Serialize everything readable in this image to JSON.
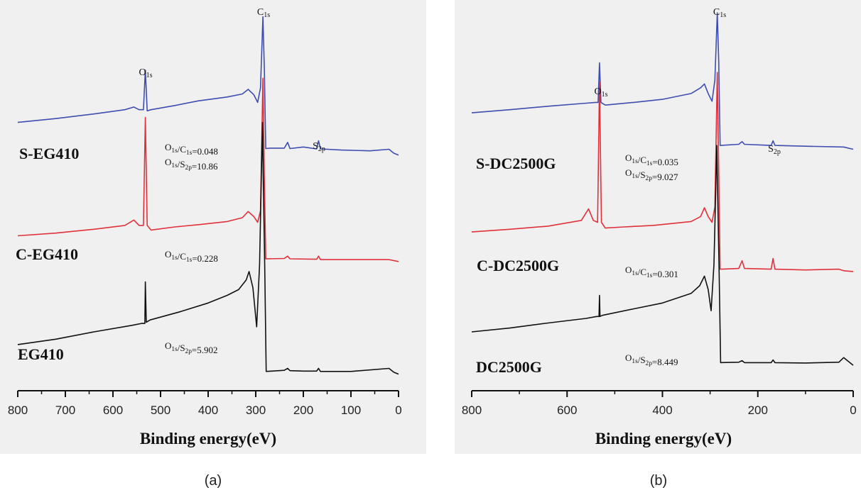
{
  "figure": {
    "panel_a_caption": "(a)",
    "panel_b_caption": "(b)"
  },
  "chart_data": [
    {
      "type": "line",
      "panel": "a",
      "xlabel": "Binding energy(eV)",
      "ylabel": "",
      "xlim": [
        800,
        0
      ],
      "x_reversed": true,
      "x_ticks": [
        800,
        700,
        600,
        500,
        400,
        300,
        200,
        100,
        0
      ],
      "y_ticks_shown": false,
      "grid": false,
      "peak_labels": [
        {
          "main": "O",
          "sub": "1s",
          "x": 532
        },
        {
          "main": "C",
          "sub": "1s",
          "x": 284
        },
        {
          "main": "S",
          "sub": "2p",
          "x": 168
        }
      ],
      "series": [
        {
          "name": "S-EG410",
          "color": "#3d4eb0",
          "x": [
            800,
            720,
            640,
            575,
            556,
            545,
            536,
            532,
            528,
            520,
            470,
            420,
            360,
            328,
            316,
            304,
            296,
            290,
            285,
            282,
            279,
            270,
            240,
            233,
            228,
            200,
            172,
            168,
            164,
            120,
            60,
            20,
            10,
            0
          ],
          "y": [
            0.7,
            0.71,
            0.722,
            0.733,
            0.74,
            0.733,
            0.733,
            0.836,
            0.73,
            0.733,
            0.744,
            0.756,
            0.766,
            0.774,
            0.786,
            0.772,
            0.752,
            0.79,
            0.975,
            0.84,
            0.632,
            0.633,
            0.633,
            0.648,
            0.632,
            0.636,
            0.631,
            0.652,
            0.631,
            0.628,
            0.626,
            0.63,
            0.62,
            0.615
          ],
          "annotations": [
            {
              "text_parts": [
                {
                  "t": "O",
                  "sub": "1s"
                },
                {
                  "t": "/C",
                  "sub": "1s"
                },
                {
                  "t": "=0.048"
                }
              ]
            },
            {
              "text_parts": [
                {
                  "t": "O",
                  "sub": "1s"
                },
                {
                  "t": "/S",
                  "sub": "2p"
                },
                {
                  "t": "=10.86"
                }
              ]
            }
          ]
        },
        {
          "name": "C-EG410",
          "color": "#e0313a",
          "x": [
            800,
            720,
            640,
            575,
            556,
            545,
            536,
            532,
            528,
            520,
            470,
            420,
            360,
            328,
            316,
            304,
            296,
            290,
            285,
            282,
            279,
            240,
            233,
            228,
            172,
            168,
            164,
            120,
            60,
            20,
            0
          ],
          "y": [
            0.405,
            0.412,
            0.422,
            0.432,
            0.446,
            0.432,
            0.432,
            0.713,
            0.432,
            0.42,
            0.428,
            0.434,
            0.442,
            0.452,
            0.468,
            0.455,
            0.44,
            0.47,
            0.815,
            0.56,
            0.345,
            0.346,
            0.352,
            0.345,
            0.344,
            0.352,
            0.343,
            0.343,
            0.343,
            0.343,
            0.338
          ],
          "annotations": [
            {
              "text_parts": [
                {
                  "t": "O",
                  "sub": "1s"
                },
                {
                  "t": "/C",
                  "sub": "1s"
                },
                {
                  "t": "=0.228"
                }
              ]
            }
          ]
        },
        {
          "name": "EG410",
          "color": "#111111",
          "x": [
            800,
            720,
            640,
            560,
            540,
            533,
            532,
            530,
            522,
            460,
            400,
            360,
            336,
            320,
            314,
            306,
            298,
            292,
            286,
            284,
            281,
            278,
            240,
            233,
            228,
            200,
            172,
            168,
            164,
            100,
            20,
            10,
            0
          ],
          "y": [
            0.122,
            0.136,
            0.155,
            0.172,
            0.177,
            0.177,
            0.285,
            0.18,
            0.186,
            0.207,
            0.23,
            0.25,
            0.265,
            0.29,
            0.312,
            0.27,
            0.168,
            0.33,
            0.7,
            0.54,
            0.32,
            0.052,
            0.055,
            0.06,
            0.054,
            0.053,
            0.053,
            0.06,
            0.052,
            0.052,
            0.06,
            0.05,
            0.045
          ],
          "annotations": [
            {
              "text_parts": [
                {
                  "t": "O",
                  "sub": "1s"
                },
                {
                  "t": "/S",
                  "sub": "2p"
                },
                {
                  "t": "=5.902"
                }
              ]
            }
          ]
        }
      ]
    },
    {
      "type": "line",
      "panel": "b",
      "xlabel": "Binding energy(eV)",
      "ylabel": "",
      "xlim": [
        800,
        0
      ],
      "x_reversed": true,
      "x_ticks": [
        800,
        600,
        400,
        200,
        0
      ],
      "y_ticks_shown": false,
      "grid": false,
      "peak_labels": [
        {
          "main": "O",
          "sub": "1s",
          "x": 532
        },
        {
          "main": "C",
          "sub": "1s",
          "x": 284
        },
        {
          "main": "S",
          "sub": "2p",
          "x": 168
        }
      ],
      "series": [
        {
          "name": "S-DC2500G",
          "color": "#3d4eb0",
          "x": [
            800,
            720,
            640,
            560,
            540,
            535,
            532,
            529,
            520,
            460,
            400,
            340,
            320,
            312,
            304,
            296,
            290,
            285,
            282,
            279,
            240,
            233,
            228,
            172,
            168,
            164,
            100,
            20,
            0
          ],
          "y": [
            0.725,
            0.733,
            0.742,
            0.75,
            0.752,
            0.752,
            0.855,
            0.752,
            0.745,
            0.752,
            0.76,
            0.775,
            0.79,
            0.8,
            0.775,
            0.755,
            0.81,
            0.985,
            0.86,
            0.64,
            0.643,
            0.65,
            0.643,
            0.64,
            0.652,
            0.64,
            0.638,
            0.636,
            0.63
          ],
          "annotations": [
            {
              "text_parts": [
                {
                  "t": "O",
                  "sub": "1s"
                },
                {
                  "t": "/C",
                  "sub": "1s"
                },
                {
                  "t": "=0.035"
                }
              ]
            },
            {
              "text_parts": [
                {
                  "t": "O",
                  "sub": "1s"
                },
                {
                  "t": "/S",
                  "sub": "2p"
                },
                {
                  "t": "=9.027"
                }
              ]
            }
          ]
        },
        {
          "name": "C-DC2500G",
          "color": "#e0313a",
          "x": [
            800,
            720,
            640,
            570,
            555,
            545,
            536,
            532,
            528,
            520,
            480,
            420,
            340,
            320,
            312,
            304,
            296,
            290,
            285,
            282,
            279,
            240,
            233,
            228,
            172,
            168,
            164,
            100,
            30,
            20,
            0
          ],
          "y": [
            0.415,
            0.422,
            0.43,
            0.445,
            0.475,
            0.445,
            0.44,
            0.805,
            0.44,
            0.425,
            0.428,
            0.432,
            0.442,
            0.455,
            0.478,
            0.455,
            0.44,
            0.48,
            0.83,
            0.58,
            0.318,
            0.32,
            0.34,
            0.32,
            0.318,
            0.346,
            0.318,
            0.316,
            0.318,
            0.314,
            0.312
          ],
          "annotations": [
            {
              "text_parts": [
                {
                  "t": "O",
                  "sub": "1s"
                },
                {
                  "t": "/C",
                  "sub": "1s"
                },
                {
                  "t": "=0.301"
                }
              ]
            }
          ]
        },
        {
          "name": "DC2500G",
          "color": "#111111",
          "x": [
            800,
            720,
            640,
            560,
            538,
            533,
            532,
            531,
            526,
            460,
            400,
            340,
            322,
            312,
            304,
            298,
            292,
            286,
            284,
            281,
            278,
            240,
            233,
            228,
            172,
            168,
            164,
            100,
            30,
            20,
            0
          ],
          "y": [
            0.155,
            0.165,
            0.178,
            0.19,
            0.195,
            0.195,
            0.25,
            0.195,
            0.198,
            0.215,
            0.23,
            0.255,
            0.275,
            0.3,
            0.265,
            0.21,
            0.33,
            0.64,
            0.5,
            0.3,
            0.075,
            0.076,
            0.08,
            0.075,
            0.075,
            0.082,
            0.075,
            0.074,
            0.076,
            0.088,
            0.068
          ],
          "annotations": [
            {
              "text_parts": [
                {
                  "t": "O",
                  "sub": "1s"
                },
                {
                  "t": "/S",
                  "sub": "2p"
                },
                {
                  "t": "=8.449"
                }
              ]
            }
          ]
        }
      ]
    }
  ]
}
